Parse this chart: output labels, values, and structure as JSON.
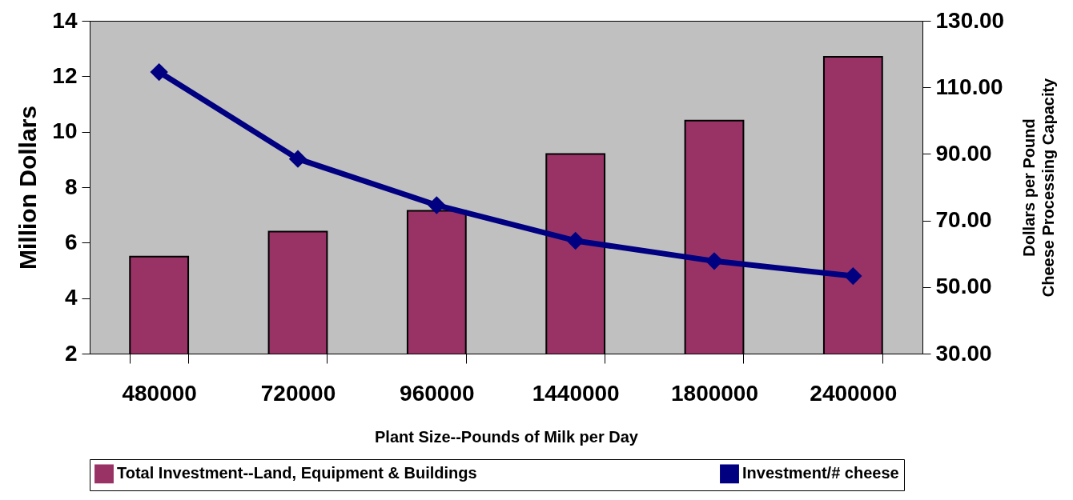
{
  "chart_data": {
    "type": "bar",
    "categories": [
      "480000",
      "720000",
      "960000",
      "1440000",
      "1800000",
      "2400000"
    ],
    "xlabel": "Plant Size--Pounds of Milk per Day",
    "ylabel": "Million Dollars",
    "y2label": "Dollars per Pound\nCheese Processing Capacity",
    "series": [
      {
        "name": "Total Investment--Land, Equipment & Buildings",
        "color": "#993366",
        "values": [
          5.5,
          6.4,
          7.15,
          9.2,
          10.4,
          12.7
        ]
      },
      {
        "name": "Investment/# cheese",
        "type": "line",
        "axis": "y2",
        "color": "#000080",
        "marker": "diamond",
        "values": [
          114.6,
          88.5,
          74.6,
          63.9,
          57.8,
          53.3
        ]
      }
    ],
    "ylim": [
      2,
      14
    ],
    "yticks": [
      2,
      4,
      6,
      8,
      10,
      12,
      14
    ],
    "y2lim": [
      30,
      130
    ],
    "y2ticks": [
      {
        "value": 30,
        "label": "30.00"
      },
      {
        "value": 50,
        "label": "50.00"
      },
      {
        "value": 70,
        "label": "70.00"
      },
      {
        "value": 90,
        "label": "90.00"
      },
      {
        "value": 110,
        "label": "110.00"
      },
      {
        "value": 130,
        "label": "130.00"
      }
    ],
    "legend": "bottom",
    "grid": false
  }
}
